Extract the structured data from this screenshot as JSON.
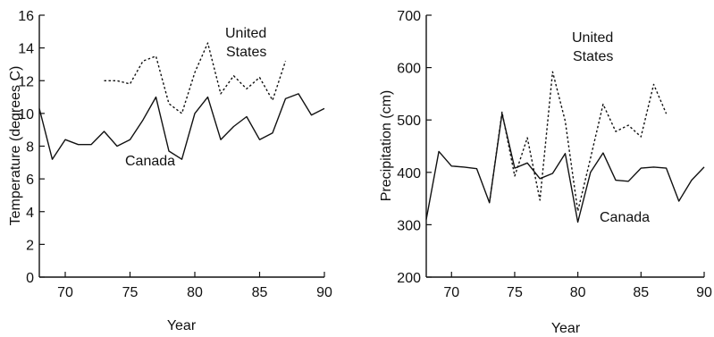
{
  "chart_data": [
    {
      "type": "line",
      "xlabel": "Year",
      "ylabel": "Temperature (degrees C)",
      "xlim": [
        68,
        90
      ],
      "ylim": [
        0,
        16
      ],
      "xticks": [
        70,
        75,
        80,
        85,
        90
      ],
      "yticks": [
        0,
        2,
        4,
        6,
        8,
        10,
        12,
        14,
        16
      ],
      "series": [
        {
          "name": "Canada",
          "style": "solid",
          "x": [
            68,
            69,
            70,
            71,
            72,
            73,
            74,
            75,
            76,
            77,
            78,
            79,
            80,
            81,
            82,
            83,
            84,
            85,
            86,
            87,
            88,
            89,
            90
          ],
          "y": [
            10.3,
            7.2,
            8.4,
            8.1,
            8.1,
            8.9,
            8.0,
            8.4,
            9.6,
            11.0,
            7.7,
            7.2,
            10.0,
            11.0,
            8.4,
            9.2,
            9.8,
            8.4,
            8.8,
            10.9,
            11.2,
            9.9,
            10.3
          ]
        },
        {
          "name": "United States",
          "style": "dotted",
          "x": [
            73,
            74,
            75,
            76,
            77,
            78,
            79,
            80,
            81,
            82,
            83,
            84,
            85,
            86,
            87
          ],
          "y": [
            12.0,
            12.0,
            11.8,
            13.2,
            13.5,
            10.6,
            10.0,
            12.5,
            14.3,
            11.2,
            12.3,
            11.5,
            12.2,
            10.8,
            13.2
          ]
        }
      ]
    },
    {
      "type": "line",
      "xlabel": "Year",
      "ylabel": "Precipitation (cm)",
      "xlim": [
        68,
        90
      ],
      "ylim": [
        200,
        700
      ],
      "xticks": [
        70,
        75,
        80,
        85,
        90
      ],
      "yticks": [
        200,
        300,
        400,
        500,
        600,
        700
      ],
      "series": [
        {
          "name": "Canada",
          "style": "solid",
          "x": [
            68,
            69,
            70,
            71,
            72,
            73,
            74,
            75,
            76,
            77,
            78,
            79,
            80,
            81,
            82,
            83,
            84,
            85,
            86,
            87,
            88,
            89,
            90
          ],
          "y": [
            310,
            440,
            412,
            410,
            407,
            342,
            512,
            408,
            418,
            388,
            398,
            436,
            305,
            400,
            437,
            385,
            383,
            408,
            410,
            408,
            345,
            385,
            410
          ]
        },
        {
          "name": "United States",
          "style": "dotted",
          "x": [
            73,
            74,
            75,
            76,
            77,
            78,
            79,
            80,
            81,
            82,
            83,
            84,
            85,
            86,
            87
          ],
          "y": [
            342,
            515,
            393,
            466,
            347,
            592,
            498,
            326,
            427,
            530,
            478,
            490,
            468,
            568,
            512
          ]
        }
      ]
    }
  ]
}
